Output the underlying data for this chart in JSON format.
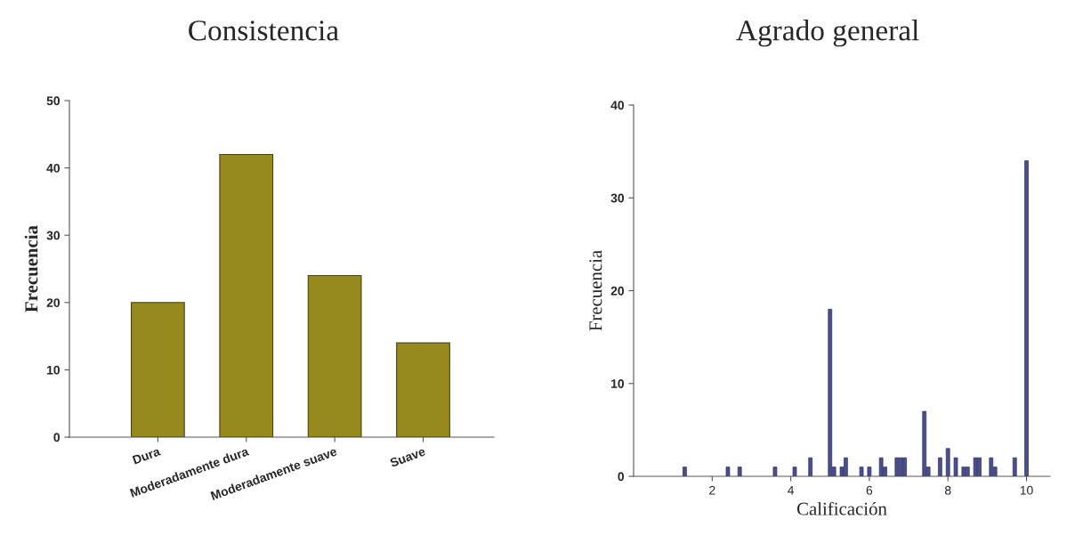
{
  "chart_data": [
    {
      "type": "bar",
      "title": "Consistencia",
      "ylabel": "Frecuencia",
      "categories": [
        "Dura",
        "Moderadamente dura",
        "Moderadamente suave",
        "Suave"
      ],
      "values": [
        20,
        42,
        24,
        14
      ],
      "color": "#968a1e",
      "ylim": [
        0,
        50
      ],
      "yticks": [
        0,
        10,
        20,
        30,
        40,
        50
      ],
      "grid": false,
      "legend": false
    },
    {
      "type": "bar",
      "title": "Agrado general",
      "xlabel": "Calificación",
      "ylabel": "Frecuencia",
      "x": [
        1.3,
        2.4,
        2.7,
        3.6,
        4.1,
        4.5,
        5.0,
        5.1,
        5.3,
        5.4,
        5.8,
        6.0,
        6.3,
        6.4,
        6.7,
        6.8,
        6.9,
        7.4,
        7.5,
        7.8,
        8.0,
        8.2,
        8.4,
        8.5,
        8.7,
        8.8,
        9.1,
        9.2,
        9.7,
        10.0
      ],
      "values": [
        1,
        1,
        1,
        1,
        1,
        2,
        18,
        1,
        1,
        2,
        1,
        1,
        2,
        1,
        2,
        2,
        2,
        7,
        1,
        2,
        3,
        2,
        1,
        1,
        2,
        2,
        2,
        1,
        2,
        34
      ],
      "color": "#4a4f8c",
      "xlim": [
        0,
        10.6
      ],
      "xticks": [
        2,
        4,
        6,
        8,
        10
      ],
      "ylim": [
        0,
        40
      ],
      "yticks": [
        0,
        10,
        20,
        30,
        40
      ],
      "grid": false,
      "legend": false
    }
  ]
}
